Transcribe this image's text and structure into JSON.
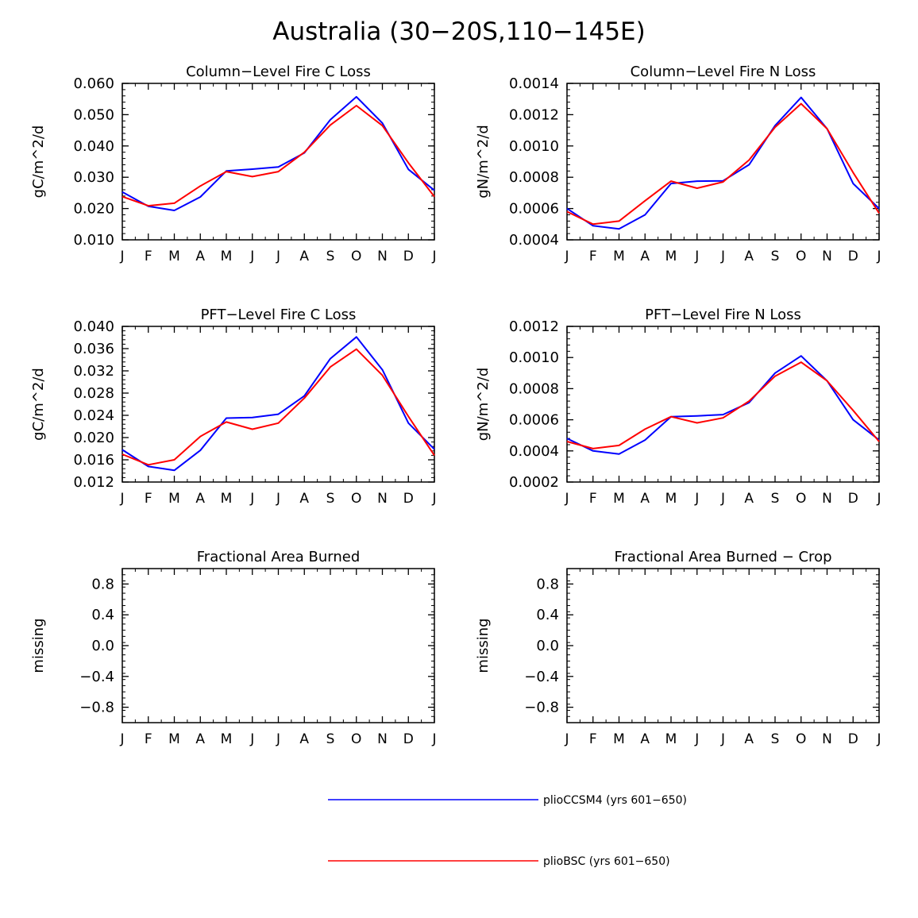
{
  "figure_title": "Australia (30−20S,110−145E)",
  "colors": {
    "series1": "#0000ff",
    "series2": "#ff0000",
    "axis": "#000000"
  },
  "legend": [
    {
      "label": "plioCCSM4 (yrs 601−650)",
      "color": "#0000ff"
    },
    {
      "label": "plioBSC (yrs 601−650)",
      "color": "#ff0000"
    }
  ],
  "chart_data": [
    {
      "type": "line",
      "title": "Column−Level Fire C Loss",
      "ylabel": "gC/m^2/d",
      "categories": [
        "J",
        "F",
        "M",
        "A",
        "M",
        "J",
        "J",
        "A",
        "S",
        "O",
        "N",
        "D",
        "J"
      ],
      "ylim": [
        0.01,
        0.06
      ],
      "yticks": [
        "0.010",
        "0.020",
        "0.030",
        "0.040",
        "0.050",
        "0.060"
      ],
      "series": [
        {
          "name": "plioCCSM4 (yrs 601−650)",
          "values": [
            0.0253,
            0.0207,
            0.0194,
            0.0237,
            0.032,
            0.0326,
            0.0333,
            0.0378,
            0.0484,
            0.0557,
            0.0473,
            0.0325,
            0.0258
          ]
        },
        {
          "name": "plioBSC (yrs 601−650)",
          "values": [
            0.0238,
            0.0209,
            0.0217,
            0.0272,
            0.0318,
            0.0302,
            0.0318,
            0.038,
            0.0467,
            0.0529,
            0.0465,
            0.0346,
            0.0238
          ]
        }
      ]
    },
    {
      "type": "line",
      "title": "Column−Level Fire N Loss",
      "ylabel": "gN/m^2/d",
      "categories": [
        "J",
        "F",
        "M",
        "A",
        "M",
        "J",
        "J",
        "A",
        "S",
        "O",
        "N",
        "D",
        "J"
      ],
      "ylim": [
        0.0004,
        0.0014
      ],
      "yticks": [
        "0.0004",
        "0.0006",
        "0.0008",
        "0.0010",
        "0.0012",
        "0.0014"
      ],
      "series": [
        {
          "name": "plioCCSM4 (yrs 601−650)",
          "values": [
            0.0006,
            0.00049,
            0.00047,
            0.00056,
            0.00076,
            0.000775,
            0.000777,
            0.00088,
            0.00113,
            0.00131,
            0.00111,
            0.00076,
            0.0006
          ]
        },
        {
          "name": "plioBSC (yrs 601−650)",
          "values": [
            0.00058,
            0.0005,
            0.00052,
            0.00065,
            0.000775,
            0.00073,
            0.00077,
            0.00091,
            0.00112,
            0.00127,
            0.00111,
            0.00083,
            0.00057
          ]
        }
      ]
    },
    {
      "type": "line",
      "title": "PFT−Level Fire C Loss",
      "ylabel": "gC/m^2/d",
      "categories": [
        "J",
        "F",
        "M",
        "A",
        "M",
        "J",
        "J",
        "A",
        "S",
        "O",
        "N",
        "D",
        "J"
      ],
      "ylim": [
        0.012,
        0.04
      ],
      "yticks": [
        "0.012",
        "0.016",
        "0.020",
        "0.024",
        "0.028",
        "0.032",
        "0.036",
        "0.040"
      ],
      "series": [
        {
          "name": "plioCCSM4 (yrs 601−650)",
          "values": [
            0.0178,
            0.0148,
            0.0141,
            0.0177,
            0.0235,
            0.0236,
            0.0242,
            0.0275,
            0.0342,
            0.0381,
            0.0322,
            0.0226,
            0.0179
          ]
        },
        {
          "name": "plioBSC (yrs 601−650)",
          "values": [
            0.017,
            0.0151,
            0.016,
            0.0202,
            0.0228,
            0.0215,
            0.0226,
            0.0271,
            0.0327,
            0.0359,
            0.0312,
            0.0238,
            0.0168
          ]
        }
      ]
    },
    {
      "type": "line",
      "title": "PFT−Level Fire N Loss",
      "ylabel": "gN/m^2/d",
      "categories": [
        "J",
        "F",
        "M",
        "A",
        "M",
        "J",
        "J",
        "A",
        "S",
        "O",
        "N",
        "D",
        "J"
      ],
      "ylim": [
        0.0002,
        0.0012
      ],
      "yticks": [
        "0.0002",
        "0.0004",
        "0.0006",
        "0.0008",
        "0.0010",
        "0.0012"
      ],
      "series": [
        {
          "name": "plioCCSM4 (yrs 601−650)",
          "values": [
            0.00048,
            0.0004,
            0.00038,
            0.00047,
            0.00062,
            0.000625,
            0.000633,
            0.00071,
            0.0009,
            0.00101,
            0.00085,
            0.0006,
            0.00047
          ]
        },
        {
          "name": "plioBSC (yrs 601−650)",
          "values": [
            0.00046,
            0.000415,
            0.000435,
            0.00054,
            0.00062,
            0.00058,
            0.000612,
            0.00072,
            0.00088,
            0.00097,
            0.00085,
            0.00066,
            0.00046
          ]
        }
      ]
    },
    {
      "type": "line",
      "title": "Fractional Area Burned",
      "ylabel": "missing",
      "categories": [
        "J",
        "F",
        "M",
        "A",
        "M",
        "J",
        "J",
        "A",
        "S",
        "O",
        "N",
        "D",
        "J"
      ],
      "ylim": [
        -1.0,
        1.0
      ],
      "yticks": [
        "−0.8",
        "−0.4",
        "0.0",
        "0.4",
        "0.8"
      ],
      "series": []
    },
    {
      "type": "line",
      "title": "Fractional Area Burned − Crop",
      "ylabel": "missing",
      "categories": [
        "J",
        "F",
        "M",
        "A",
        "M",
        "J",
        "J",
        "A",
        "S",
        "O",
        "N",
        "D",
        "J"
      ],
      "ylim": [
        -1.0,
        1.0
      ],
      "yticks": [
        "−0.8",
        "−0.4",
        "0.0",
        "0.4",
        "0.8"
      ],
      "series": []
    }
  ]
}
